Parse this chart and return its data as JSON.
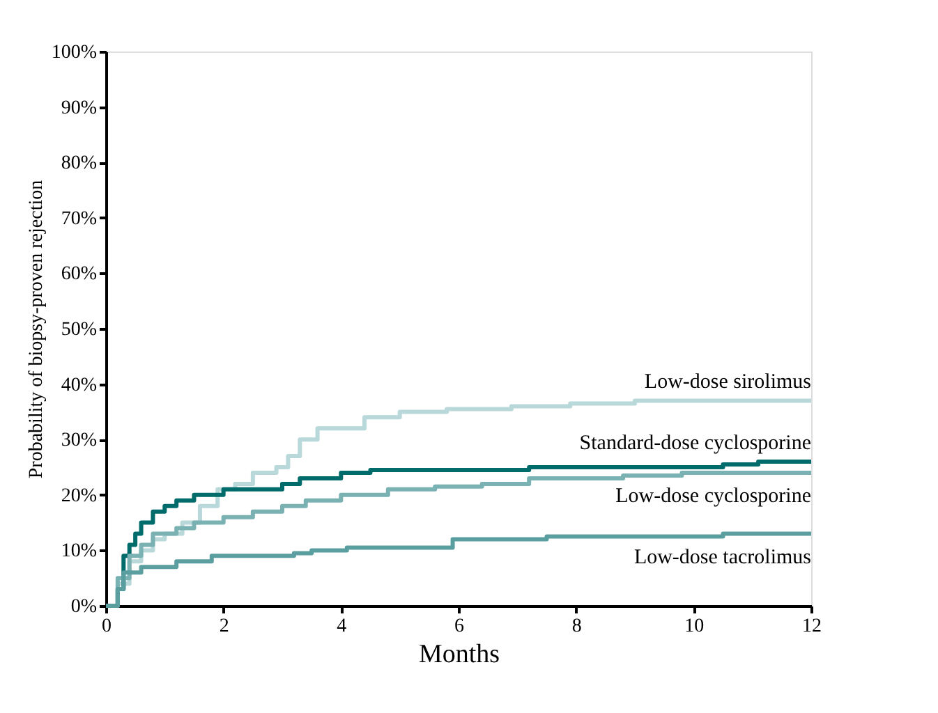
{
  "chart_data": {
    "type": "step",
    "xlabel": "Months",
    "ylabel": "Probability of biopsy-proven rejection",
    "xlim": [
      0,
      12
    ],
    "xticks": [
      0,
      2,
      4,
      6,
      8,
      10,
      12
    ],
    "ylim": [
      0,
      100
    ],
    "yticks": [
      {
        "value": 0,
        "label": "0%"
      },
      {
        "value": 10,
        "label": "10%"
      },
      {
        "value": 20,
        "label": "20%"
      },
      {
        "value": 30,
        "label": "30%"
      },
      {
        "value": 40,
        "label": "40%"
      },
      {
        "value": 50,
        "label": "50%"
      },
      {
        "value": 60,
        "label": "60%"
      },
      {
        "value": 70,
        "label": "70%"
      },
      {
        "value": 80,
        "label": "80%"
      },
      {
        "value": 90,
        "label": "90%"
      },
      {
        "value": 100,
        "label": "100%"
      }
    ],
    "grid": false,
    "legend": false,
    "marker": "none",
    "line_style": "solid",
    "series": [
      {
        "name": "Low-dose sirolimus",
        "color": "#b8d8da",
        "x": [
          0,
          0.2,
          0.4,
          0.6,
          0.8,
          1.0,
          1.3,
          1.6,
          1.9,
          2.2,
          2.5,
          2.9,
          3.1,
          3.3,
          3.6,
          4.4,
          5.0,
          5.8,
          6.9,
          7.9,
          9,
          12
        ],
        "values": [
          0,
          4,
          8,
          10,
          12,
          13,
          15,
          18,
          21,
          22,
          24,
          25,
          27,
          30,
          32,
          34,
          35,
          35.5,
          36,
          36.5,
          37,
          37
        ]
      },
      {
        "name": "Standard-dose cyclosporine",
        "color": "#006b6b",
        "x": [
          0,
          0.2,
          0.3,
          0.4,
          0.5,
          0.6,
          0.8,
          1.0,
          1.2,
          1.5,
          2.0,
          3.0,
          3.3,
          4.0,
          4.5,
          7.2,
          10.5,
          11.1,
          12
        ],
        "values": [
          0,
          3,
          9,
          11,
          13,
          15,
          17,
          18,
          19,
          20,
          21,
          22,
          23,
          24,
          24.5,
          25,
          25.5,
          26,
          26
        ]
      },
      {
        "name": "Low-dose cyclosporine",
        "color": "#7ab1b3",
        "x": [
          0,
          0.2,
          0.4,
          0.6,
          0.8,
          1.2,
          1.5,
          2.0,
          2.5,
          3.0,
          3.4,
          4.0,
          4.8,
          5.6,
          6.4,
          7.2,
          8.8,
          9.8,
          12
        ],
        "values": [
          0,
          5,
          9,
          11,
          13,
          14,
          15,
          16,
          17,
          18,
          19,
          20,
          21,
          21.5,
          22,
          23,
          23.5,
          24,
          24
        ]
      },
      {
        "name": "Low-dose tacrolimus",
        "color": "#5a9ea0",
        "x": [
          0,
          0.2,
          0.3,
          0.6,
          1.2,
          1.8,
          3.2,
          3.5,
          4.1,
          5.9,
          7.5,
          10.5,
          12
        ],
        "values": [
          0,
          3,
          6,
          7,
          8,
          9,
          9.5,
          10,
          10.5,
          12,
          12.5,
          13,
          13
        ]
      }
    ]
  }
}
